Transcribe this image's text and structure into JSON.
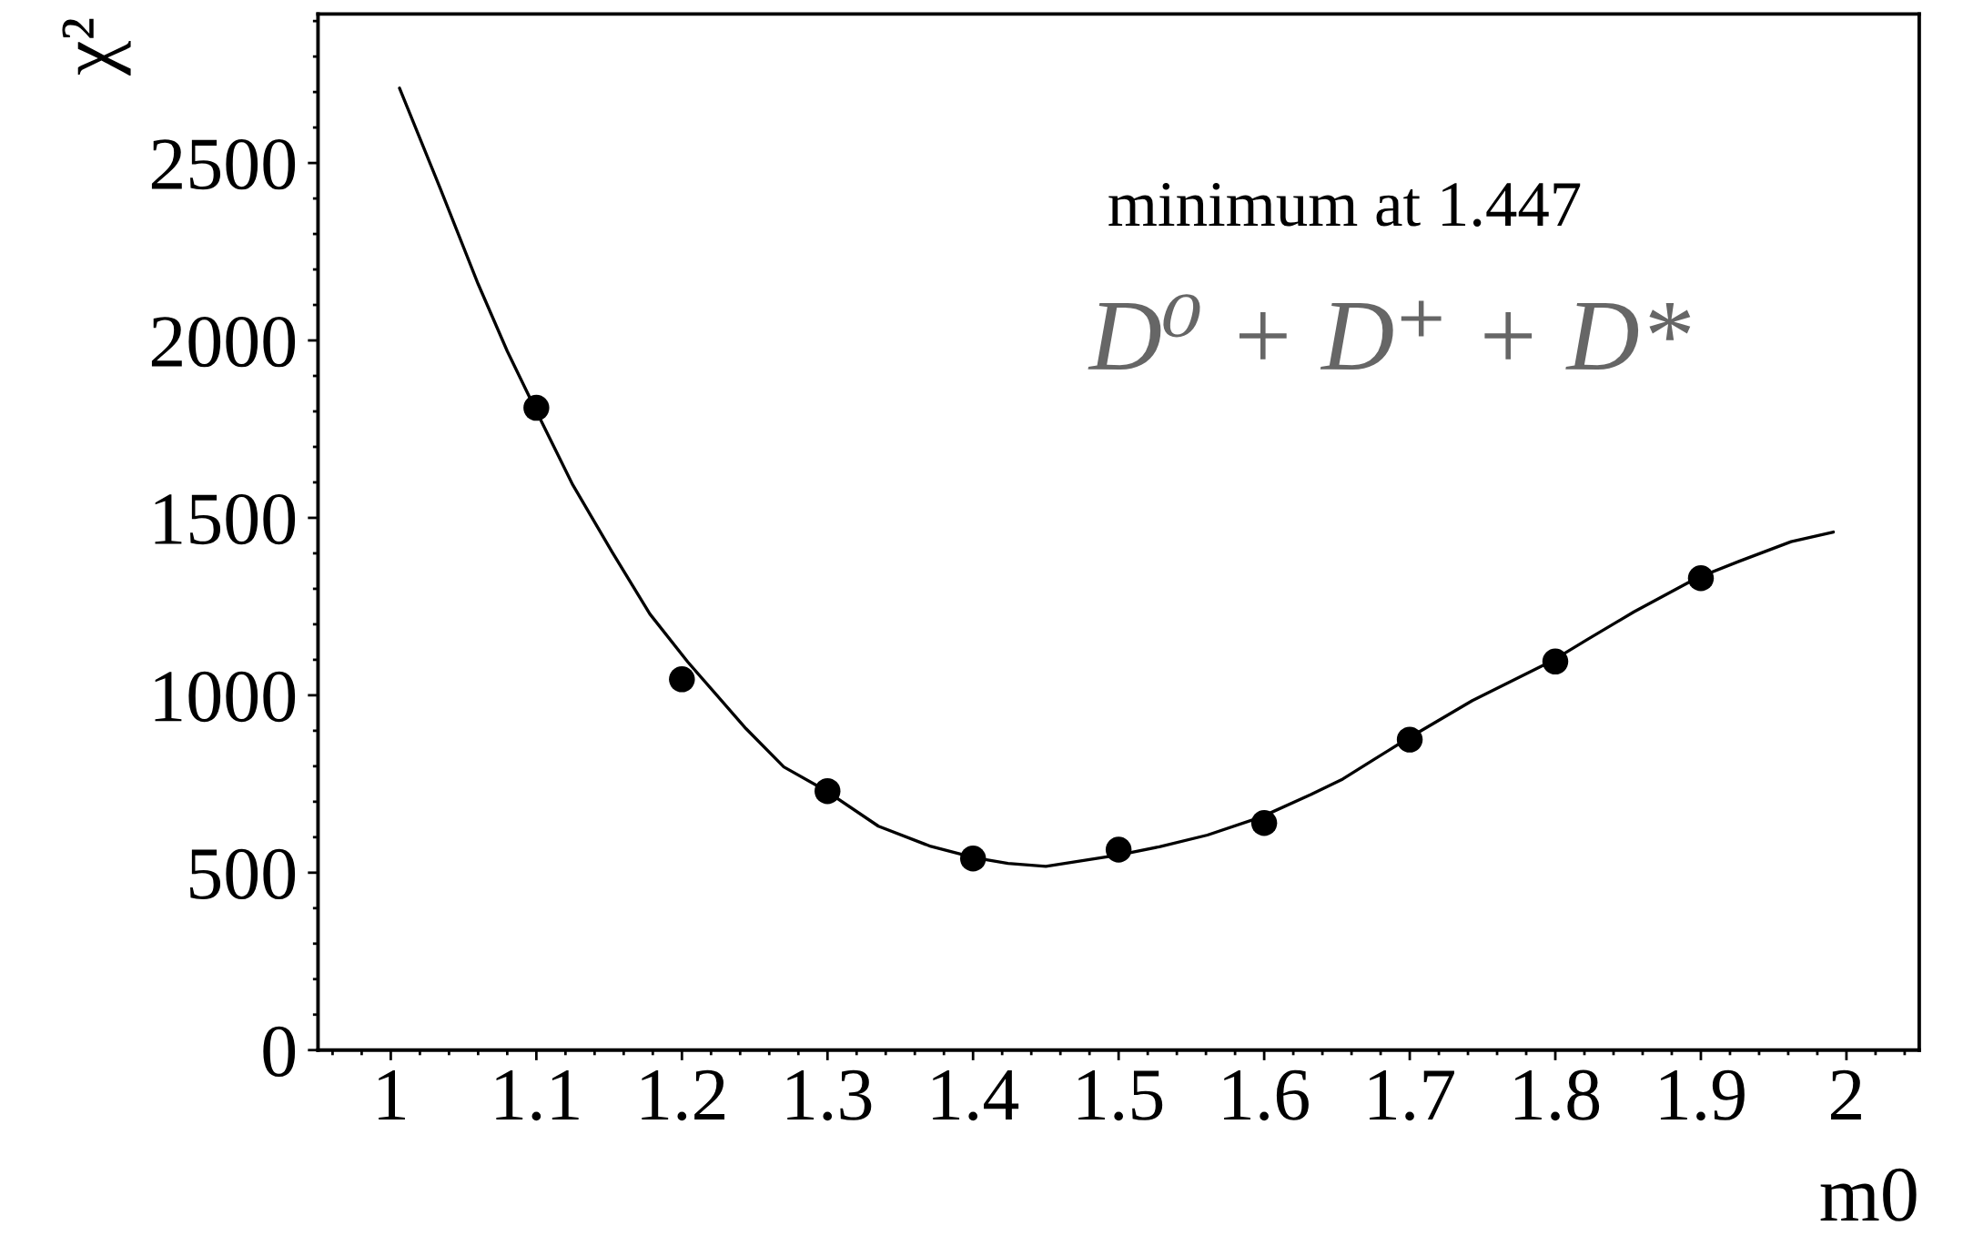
{
  "chart_data": {
    "type": "scatter",
    "xlabel": "m0",
    "ylabel": "χ²",
    "annotations": [
      "minimum at 1.447",
      "D⁰ + D⁺ + D*"
    ],
    "xlim": [
      0.95,
      2.05
    ],
    "xticks": [
      1,
      1.1,
      1.2,
      1.3,
      1.4,
      1.5,
      1.6,
      1.7,
      1.8,
      1.9,
      2
    ],
    "ylim": [
      0,
      2920
    ],
    "yticks": [
      0,
      500,
      1000,
      1500,
      2000,
      2500
    ],
    "grid": false,
    "marker": "circle",
    "series": [
      {
        "type": "line",
        "color": "#000000",
        "marker": "none",
        "line_style": "solid",
        "x": [
          1.006,
          1.034,
          1.06,
          1.08,
          1.099,
          1.125,
          1.152,
          1.178,
          1.204,
          1.244,
          1.27,
          1.299,
          1.335,
          1.371,
          1.401,
          1.424,
          1.45,
          1.5,
          1.528,
          1.561,
          1.598,
          1.632,
          1.654,
          1.675,
          1.697,
          1.743,
          1.797,
          1.822,
          1.854,
          1.897,
          1.926,
          1.962,
          1.991
        ],
        "values": [
          2711,
          2428,
          2159,
          1970,
          1809,
          1593,
          1404,
          1229,
          1094,
          906,
          798,
          731,
          631,
          574,
          542,
          526,
          518,
          550,
          573,
          606,
          657,
          720,
          764,
          818,
          874,
          985,
          1095,
          1157,
          1235,
          1330,
          1377,
          1433,
          1460
        ]
      },
      {
        "color": "#000000",
        "x": [
          1.1,
          1.2,
          1.3,
          1.4,
          1.5,
          1.6,
          1.7,
          1.8,
          1.9
        ],
        "values": [
          1810,
          1045,
          730,
          540,
          565,
          640,
          875,
          1095,
          1330
        ]
      }
    ]
  }
}
